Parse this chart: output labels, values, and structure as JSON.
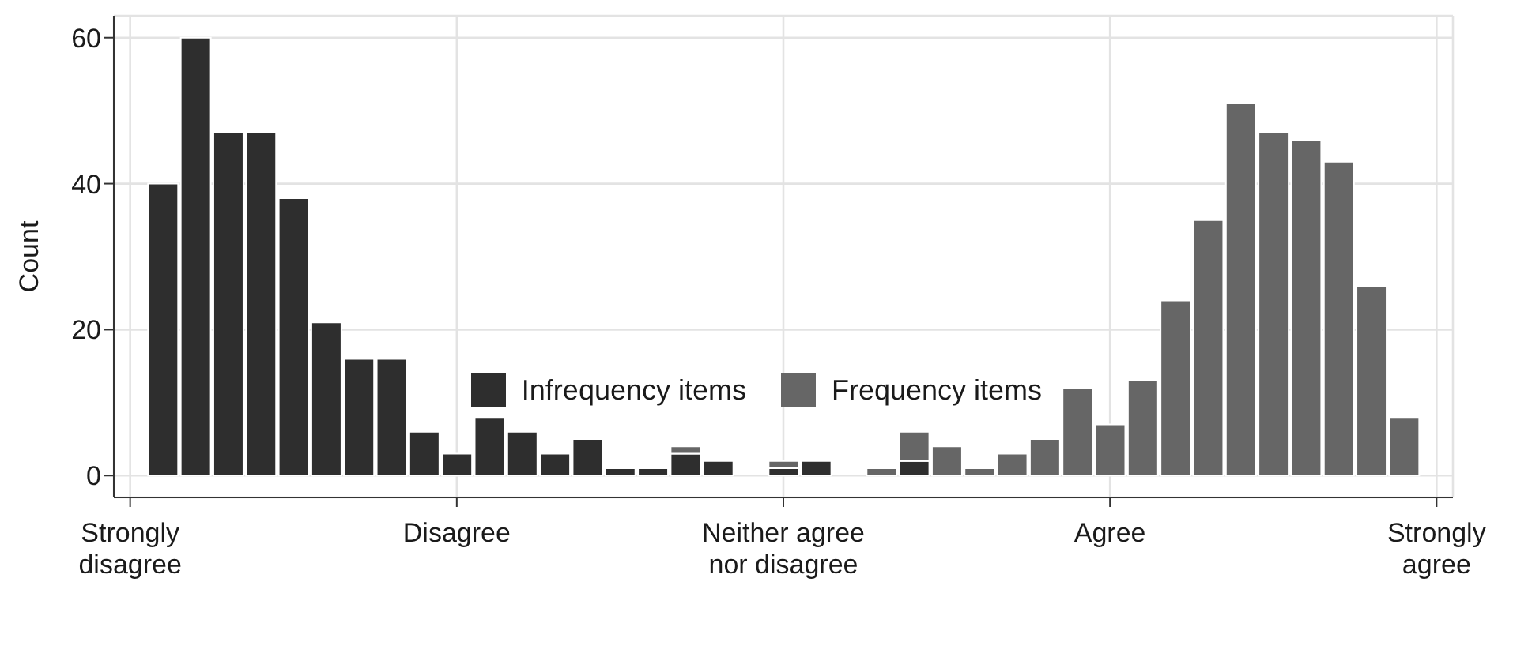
{
  "chart_data": {
    "type": "bar",
    "ylabel": "Count",
    "categories": [
      "Strongly disagree",
      null,
      null,
      null,
      null,
      null,
      null,
      null,
      null,
      null,
      "Disagree",
      null,
      null,
      null,
      null,
      null,
      null,
      null,
      null,
      null,
      "Neither agree nor disagree",
      null,
      null,
      null,
      null,
      null,
      null,
      null,
      null,
      null,
      "Agree",
      null,
      null,
      null,
      null,
      null,
      null,
      null,
      null,
      null,
      "Strongly agree"
    ],
    "stacked": true,
    "series": [
      {
        "name": "Infrequency items",
        "color": "#2e2e2e",
        "values": [
          null,
          40,
          60,
          47,
          47,
          38,
          21,
          16,
          16,
          6,
          3,
          8,
          6,
          3,
          5,
          1,
          1,
          3,
          2,
          0,
          1,
          2,
          0,
          0,
          2,
          0,
          0,
          0,
          0,
          0,
          0,
          0,
          0,
          0,
          0,
          0,
          0,
          0,
          0,
          0,
          null
        ]
      },
      {
        "name": "Frequency items",
        "color": "#666666",
        "values": [
          null,
          0,
          0,
          0,
          0,
          0,
          0,
          0,
          0,
          0,
          0,
          0,
          0,
          0,
          0,
          0,
          0,
          1,
          0,
          0,
          1,
          0,
          0,
          1,
          4,
          4,
          1,
          3,
          5,
          12,
          7,
          13,
          24,
          35,
          51,
          47,
          46,
          43,
          26,
          8,
          null
        ]
      }
    ],
    "ylim": [
      -3,
      63
    ],
    "yticks": [
      0,
      20,
      40,
      60
    ],
    "grid": true,
    "legend": "center"
  }
}
